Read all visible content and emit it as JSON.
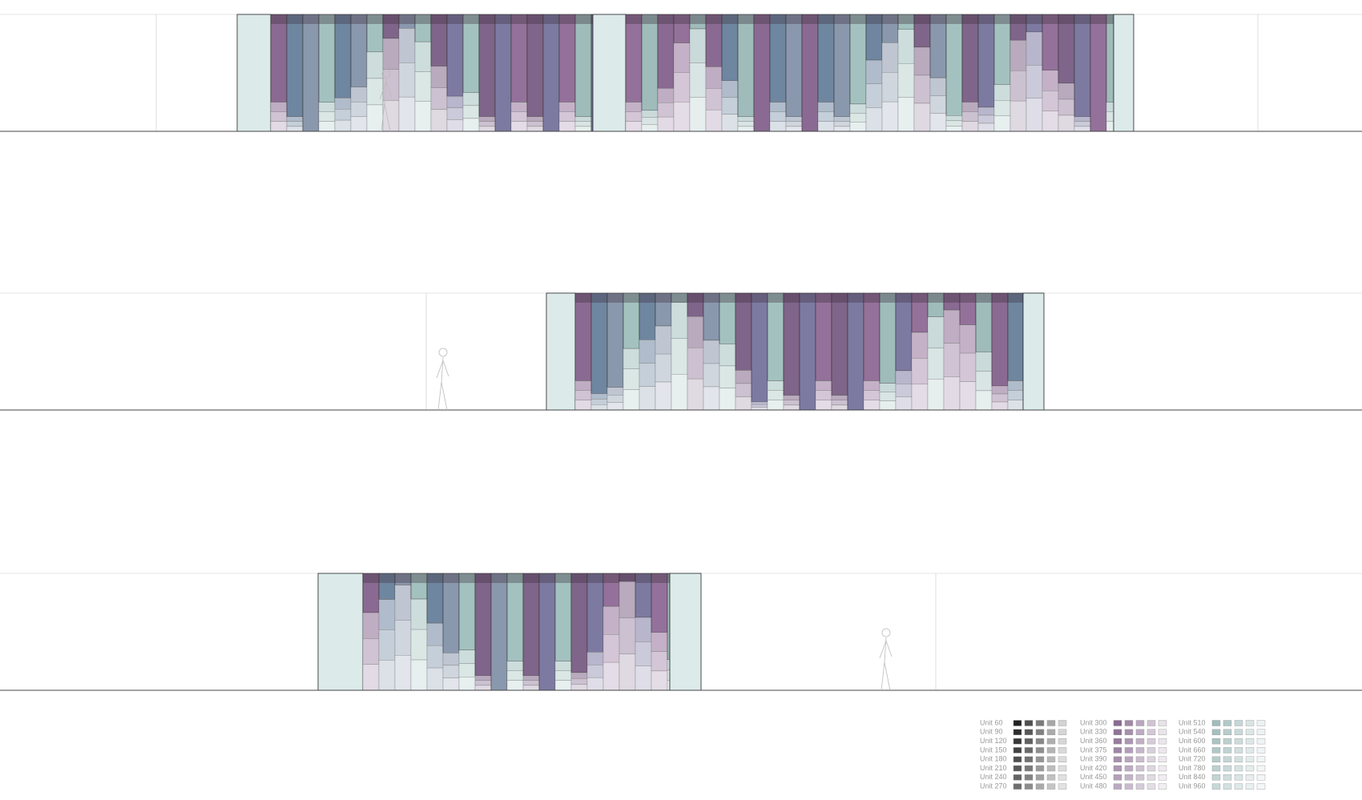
{
  "legend": {
    "items": [
      "Unit 60",
      "Unit 90",
      "Unit 120",
      "Unit 150",
      "Unit 180",
      "Unit 210",
      "Unit 240",
      "Unit 270",
      "Unit 300",
      "Unit 330",
      "Unit 360",
      "Unit 375",
      "Unit 390",
      "Unit 420",
      "Unit 450",
      "Unit 480",
      "Unit 510",
      "Unit 540",
      "Unit 600",
      "Unit 660",
      "Unit 720",
      "Unit 780",
      "Unit 840",
      "Unit 960"
    ]
  }
}
